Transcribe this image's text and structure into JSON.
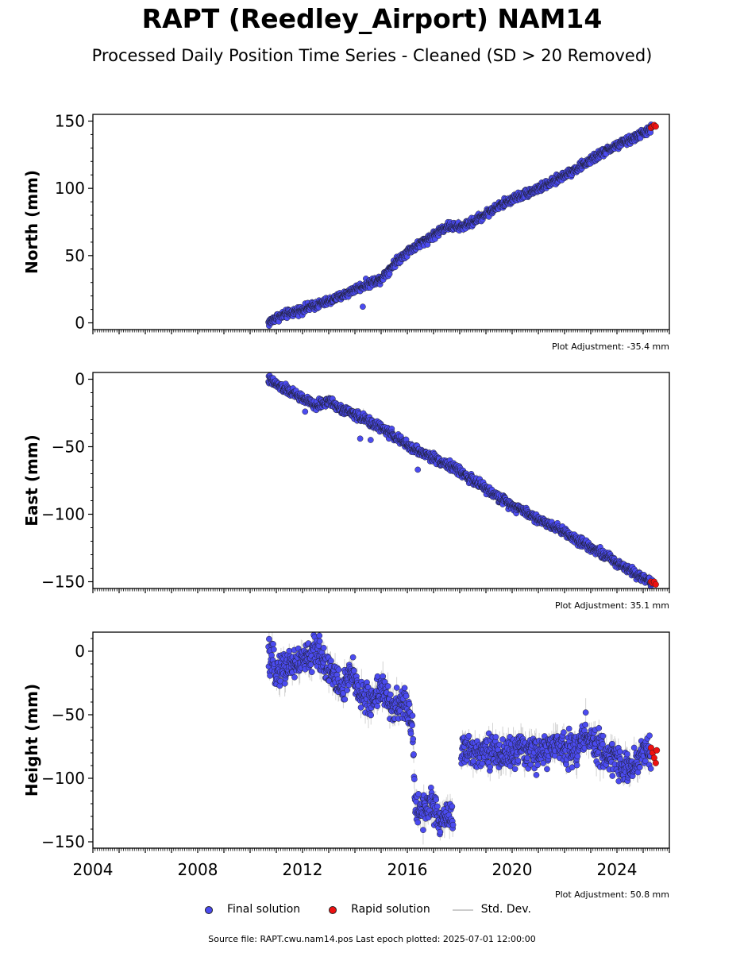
{
  "title": "RAPT (Reedley_Airport) NAM14",
  "subtitle": "Processed Daily Position Time Series - Cleaned (SD > 20 Removed)",
  "footer": "Source file: RAPT.cwu.nam14.pos  Last epoch plotted: 2025-07-01 12:00:00",
  "legend": [
    {
      "label": "Final solution",
      "kind": "dot",
      "color": "#4b4bf0"
    },
    {
      "label": "Rapid solution",
      "kind": "dot",
      "color": "#ee1111"
    },
    {
      "label": "Std. Dev.",
      "kind": "line",
      "color": "#cccccc"
    }
  ],
  "colors": {
    "final": "#4b4bf0",
    "rapid": "#ee1111",
    "stddev": "#bdbdbd",
    "axis": "#000000"
  },
  "chart_data": [
    {
      "type": "scatter",
      "title": "",
      "xlabel": "",
      "ylabel": "North (mm)",
      "xlim": [
        2004,
        2026
      ],
      "ylim": [
        -5,
        155
      ],
      "yticks": [
        0,
        50,
        100,
        150
      ],
      "yticks_labels": [
        "0",
        "50",
        "100",
        "150"
      ],
      "show_xtick_labels": false,
      "adjustment": "Plot Adjustment: -35.4 mm",
      "final_solution": {
        "x": [
          2010.7,
          2011.0,
          2011.5,
          2012.0,
          2012.5,
          2013.0,
          2013.5,
          2014.0,
          2014.5,
          2015.0,
          2015.5,
          2016.0,
          2016.5,
          2017.0,
          2017.5,
          2018.0,
          2018.5,
          2019.0,
          2019.5,
          2020.0,
          2020.5,
          2021.0,
          2021.5,
          2022.0,
          2022.5,
          2023.0,
          2023.5,
          2024.0,
          2024.5,
          2025.0,
          2025.35
        ],
        "y": [
          0,
          4,
          7,
          10,
          13,
          16,
          20,
          25,
          29,
          33,
          44,
          53,
          59,
          65,
          72,
          71,
          75,
          81,
          87,
          92,
          96,
          100,
          104,
          110,
          115,
          121,
          127,
          132,
          136,
          141,
          145
        ],
        "noise": 2.2
      },
      "outliers": {
        "x": [
          2014.3
        ],
        "y": [
          12
        ]
      },
      "rapid_solution": {
        "x": [
          2025.3,
          2025.36,
          2025.42,
          2025.48
        ],
        "y": [
          145,
          146,
          147,
          146
        ]
      }
    },
    {
      "type": "scatter",
      "title": "",
      "xlabel": "",
      "ylabel": "East (mm)",
      "xlim": [
        2004,
        2026
      ],
      "ylim": [
        -155,
        5
      ],
      "yticks": [
        0,
        -50,
        -100,
        -150
      ],
      "yticks_labels": [
        "0",
        "−50",
        "−100",
        "−150"
      ],
      "show_xtick_labels": false,
      "adjustment": "Plot Adjustment: 35.1 mm",
      "final_solution": {
        "x": [
          2010.7,
          2011.0,
          2011.5,
          2012.0,
          2012.5,
          2013.0,
          2013.5,
          2014.0,
          2014.5,
          2015.0,
          2015.5,
          2016.0,
          2016.5,
          2017.0,
          2017.5,
          2018.0,
          2018.5,
          2019.0,
          2019.5,
          2020.0,
          2020.5,
          2021.0,
          2021.5,
          2022.0,
          2022.5,
          2023.0,
          2023.5,
          2024.0,
          2024.5,
          2025.0,
          2025.35
        ],
        "y": [
          0,
          -4,
          -9,
          -14,
          -20,
          -16,
          -22,
          -26,
          -31,
          -36,
          -42,
          -49,
          -54,
          -58,
          -63,
          -68,
          -75,
          -81,
          -88,
          -93,
          -98,
          -104,
          -108,
          -113,
          -119,
          -124,
          -130,
          -136,
          -141,
          -147,
          -150
        ],
        "noise": 2.4
      },
      "outliers": {
        "x": [
          2012.1,
          2014.2,
          2014.6,
          2016.4
        ],
        "y": [
          -24,
          -44,
          -45,
          -67
        ]
      },
      "rapid_solution": {
        "x": [
          2025.3,
          2025.36,
          2025.42,
          2025.48
        ],
        "y": [
          -150,
          -151,
          -150,
          -152
        ]
      }
    },
    {
      "type": "scatter",
      "title": "",
      "xlabel": "",
      "ylabel": "Height (mm)",
      "xlim": [
        2004,
        2026
      ],
      "ylim": [
        -155,
        15
      ],
      "yticks": [
        0,
        -50,
        -100,
        -150
      ],
      "yticks_labels": [
        "0",
        "−50",
        "−100",
        "−150"
      ],
      "xticks": [
        2004,
        2008,
        2012,
        2016,
        2020,
        2024
      ],
      "xticks_labels": [
        "2004",
        "2008",
        "2012",
        "2016",
        "2020",
        "2024"
      ],
      "show_xtick_labels": true,
      "adjustment": "Plot Adjustment: 50.8 mm",
      "final_solution": {
        "x": [
          2010.7,
          2011.0,
          2011.5,
          2012.0,
          2012.3,
          2012.6,
          2012.9,
          2013.2,
          2013.5,
          2013.9,
          2014.2,
          2014.6,
          2015.0,
          2015.3,
          2015.6,
          2015.9,
          2016.2,
          2016.3,
          2016.6,
          2016.9,
          2017.2,
          2017.5,
          2017.8,
          2018.1,
          2018.5,
          2019.0,
          2019.5,
          2020.0,
          2020.5,
          2021.0,
          2021.5,
          2022.0,
          2022.5,
          2022.8,
          2023.0,
          2023.5,
          2024.0,
          2024.5,
          2025.0,
          2025.3
        ],
        "y": [
          -5,
          -15,
          -10,
          -8,
          -3,
          0,
          -10,
          -20,
          -30,
          -18,
          -33,
          -40,
          -28,
          -42,
          -45,
          -40,
          -62,
          -120,
          -125,
          -118,
          -135,
          -128,
          -130,
          -78,
          -80,
          -76,
          -82,
          -80,
          -78,
          -81,
          -76,
          -74,
          -78,
          -62,
          -72,
          -80,
          -85,
          -95,
          -78,
          -80
        ],
        "noise": 9
      },
      "rapid_solution": {
        "x": [
          2025.3,
          2025.36,
          2025.42,
          2025.48,
          2025.52
        ],
        "y": [
          -76,
          -80,
          -84,
          -88,
          -78
        ]
      }
    }
  ]
}
